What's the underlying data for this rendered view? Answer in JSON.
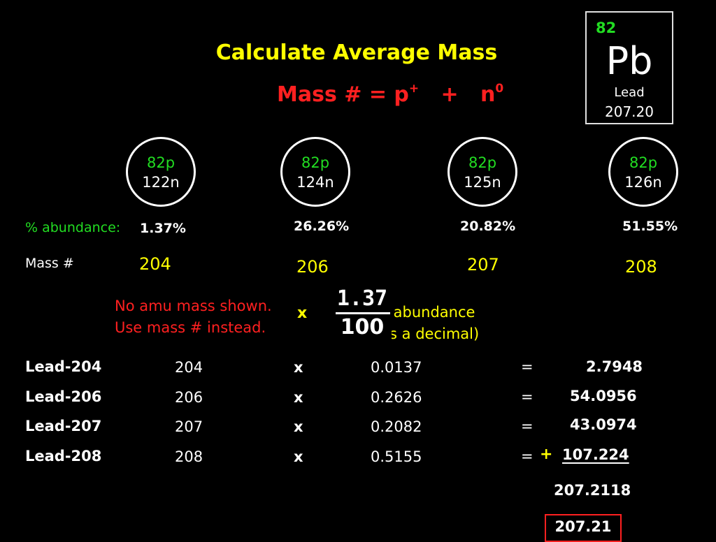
{
  "title": "Calculate Average Mass",
  "formula": {
    "lhs": "Mass # = p",
    "p_sup": "+",
    "plus": "+",
    "n": "n",
    "n_sup": "0"
  },
  "element": {
    "number": "82",
    "symbol": "Pb",
    "name": "Lead",
    "mass": "207.20"
  },
  "isotopes": [
    {
      "protons": "82p",
      "neutrons": "122n",
      "abundance": "1.37%",
      "mass_number": "204"
    },
    {
      "protons": "82p",
      "neutrons": "124n",
      "abundance": "26.26%",
      "mass_number": "206"
    },
    {
      "protons": "82p",
      "neutrons": "125n",
      "abundance": "20.82%",
      "mass_number": "207"
    },
    {
      "protons": "82p",
      "neutrons": "126n",
      "abundance": "51.55%",
      "mass_number": "208"
    }
  ],
  "labels": {
    "abundance": "% abundance:",
    "mass_number": "Mass #"
  },
  "note": {
    "line1": "No amu mass shown.",
    "line2": "Use mass # instead."
  },
  "fraction": {
    "times": "x",
    "numerator": "1.37",
    "denominator": "100"
  },
  "hint": {
    "line1": "% abundance",
    "line2": "(as a decimal)"
  },
  "calc_rows": [
    {
      "name": "Lead-204",
      "mass": "204",
      "op": "x",
      "decimal": "0.0137",
      "eq": "=",
      "result": "2.7948"
    },
    {
      "name": "Lead-206",
      "mass": "206",
      "op": "x",
      "decimal": "0.2626",
      "eq": "=",
      "result": "54.0956"
    },
    {
      "name": "Lead-207",
      "mass": "207",
      "op": "x",
      "decimal": "0.2082",
      "eq": "=",
      "result": "43.0974"
    },
    {
      "name": "Lead-208",
      "mass": "208",
      "op": "x",
      "decimal": "0.5155",
      "eq": "=",
      "result": "107.224"
    }
  ],
  "plus_sign": "+",
  "sum": "207.2118",
  "final": "207.21",
  "colors": {
    "yellow": "#ffff00",
    "red": "#ff2020",
    "green": "#22dd22",
    "white": "#ffffff",
    "background": "#000000"
  }
}
